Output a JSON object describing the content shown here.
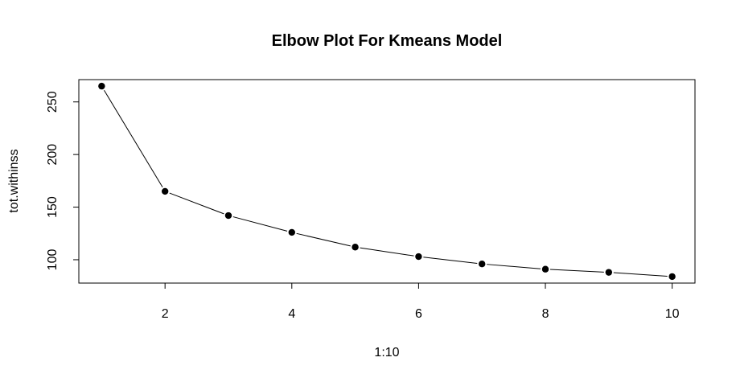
{
  "chart_data": {
    "type": "line",
    "title": "Elbow Plot For Kmeans Model",
    "xlabel": "1:10",
    "ylabel": "tot.withinss",
    "x": [
      1,
      2,
      3,
      4,
      5,
      6,
      7,
      8,
      9,
      10
    ],
    "y": [
      265,
      165,
      142,
      126,
      112,
      103,
      96,
      91,
      88,
      84
    ],
    "xlim": [
      0.64,
      10.36
    ],
    "ylim": [
      77.8,
      271.2
    ],
    "x_ticks": [
      2,
      4,
      6,
      8,
      10
    ],
    "y_ticks": [
      100,
      150,
      200,
      250
    ],
    "x_tick_labels": [
      "2",
      "4",
      "6",
      "8",
      "10"
    ],
    "y_tick_labels": [
      "100",
      "150",
      "200",
      "250"
    ],
    "grid": false,
    "legend": "none",
    "line_color": "#000000",
    "point_color": "#000000"
  }
}
